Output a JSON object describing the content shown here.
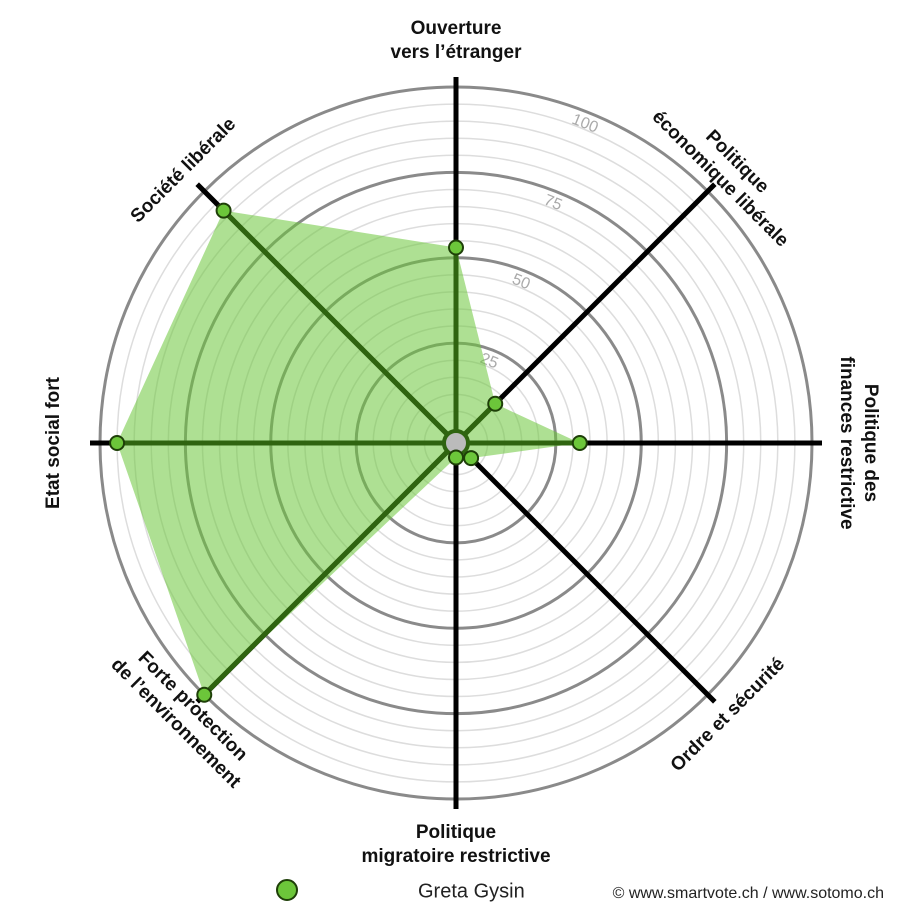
{
  "chart_data": {
    "type": "radar",
    "categories": [
      "Ouverture\nvers l’étranger",
      "Politique\néconomique libérale",
      "Politique des\nfinances restrictive",
      "Ordre et sécurité",
      "Politique\nmigratoire restrictive",
      "Forte protection\nde l’environnement",
      "Etat social fort",
      "Société libérale"
    ],
    "series": [
      {
        "name": "Greta Gysin",
        "color": "#6cc63a",
        "values": [
          53,
          12,
          32,
          2,
          0,
          100,
          95,
          92
        ]
      }
    ],
    "ylim": [
      0,
      100
    ],
    "yticks": [
      25,
      50,
      75,
      100
    ],
    "minor_step": 5,
    "credit": "© www.smartvote.ch / www.sotomo.ch"
  }
}
